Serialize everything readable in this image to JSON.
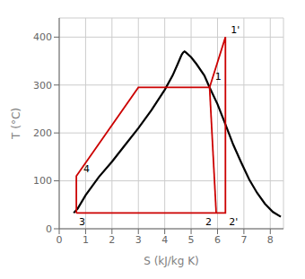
{
  "chart_data": {
    "type": "line",
    "xlabel": "S (kJ/kg K)",
    "ylabel": "T (°C)",
    "xlim": [
      0,
      8.5
    ],
    "ylim": [
      0,
      440
    ],
    "xticks": [
      0,
      1,
      2,
      3,
      4,
      5,
      6,
      7,
      8
    ],
    "yticks": [
      0,
      100,
      200,
      300,
      400
    ],
    "grid": true,
    "series": [
      {
        "color": "#000000",
        "x": [
          0.55,
          0.7,
          1.0,
          1.5,
          2.0,
          2.5,
          3.0,
          3.5,
          4.0,
          4.3,
          4.5,
          4.6,
          4.65,
          4.7,
          4.75,
          4.8,
          5.0,
          5.2,
          5.5,
          5.7,
          6.0,
          6.3,
          6.6,
          6.9,
          7.2,
          7.5,
          7.8,
          8.1,
          8.4
        ],
        "values": [
          33,
          42,
          70,
          108,
          140,
          175,
          210,
          248,
          290,
          320,
          345,
          358,
          364,
          368,
          370,
          368,
          358,
          344,
          320,
          295,
          260,
          218,
          175,
          138,
          103,
          75,
          52,
          35,
          25
        ]
      },
      {
        "color": "#cc0000",
        "x": [
          0.65,
          0.65,
          3.0,
          5.7,
          6.3,
          6.3,
          0.65
        ],
        "values": [
          33,
          110,
          295,
          295,
          400,
          33,
          33
        ]
      },
      {
        "color": "#cc0000",
        "x": [
          5.7,
          5.95
        ],
        "values": [
          295,
          33
        ]
      }
    ],
    "annotations": [
      {
        "text": "1",
        "x": 5.7,
        "y": 295
      },
      {
        "text": "1'",
        "x": 6.3,
        "y": 400
      },
      {
        "text": "2",
        "x": 5.95,
        "y": 33
      },
      {
        "text": "2'",
        "x": 6.3,
        "y": 33
      },
      {
        "text": "3",
        "x": 0.65,
        "y": 33
      },
      {
        "text": "4",
        "x": 0.65,
        "y": 110
      }
    ]
  }
}
